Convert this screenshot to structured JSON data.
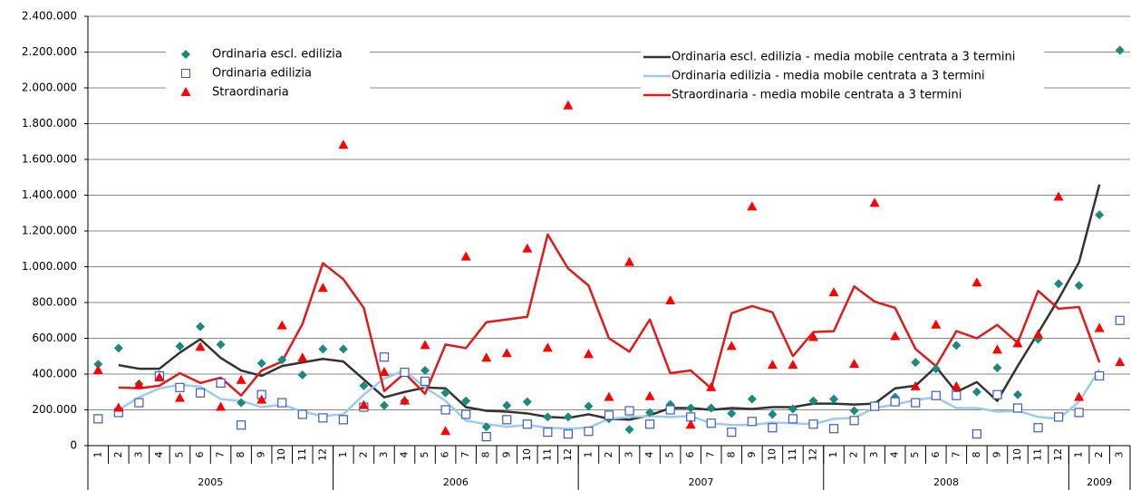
{
  "chart_data": {
    "type": "line",
    "categories": [
      {
        "month": "1",
        "year": "2005"
      },
      {
        "month": "2",
        "year": "2005"
      },
      {
        "month": "3",
        "year": "2005"
      },
      {
        "month": "4",
        "year": "2005"
      },
      {
        "month": "5",
        "year": "2005"
      },
      {
        "month": "6",
        "year": "2005"
      },
      {
        "month": "7",
        "year": "2005"
      },
      {
        "month": "8",
        "year": "2005"
      },
      {
        "month": "9",
        "year": "2005"
      },
      {
        "month": "10",
        "year": "2005"
      },
      {
        "month": "11",
        "year": "2005"
      },
      {
        "month": "12",
        "year": "2005"
      },
      {
        "month": "1",
        "year": "2006"
      },
      {
        "month": "2",
        "year": "2006"
      },
      {
        "month": "3",
        "year": "2006"
      },
      {
        "month": "4",
        "year": "2006"
      },
      {
        "month": "5",
        "year": "2006"
      },
      {
        "month": "6",
        "year": "2006"
      },
      {
        "month": "7",
        "year": "2006"
      },
      {
        "month": "8",
        "year": "2006"
      },
      {
        "month": "9",
        "year": "2006"
      },
      {
        "month": "10",
        "year": "2006"
      },
      {
        "month": "11",
        "year": "2006"
      },
      {
        "month": "12",
        "year": "2006"
      },
      {
        "month": "1",
        "year": "2007"
      },
      {
        "month": "2",
        "year": "2007"
      },
      {
        "month": "3",
        "year": "2007"
      },
      {
        "month": "4",
        "year": "2007"
      },
      {
        "month": "5",
        "year": "2007"
      },
      {
        "month": "6",
        "year": "2007"
      },
      {
        "month": "7",
        "year": "2007"
      },
      {
        "month": "8",
        "year": "2007"
      },
      {
        "month": "9",
        "year": "2007"
      },
      {
        "month": "10",
        "year": "2007"
      },
      {
        "month": "11",
        "year": "2007"
      },
      {
        "month": "12",
        "year": "2007"
      },
      {
        "month": "1",
        "year": "2008"
      },
      {
        "month": "2",
        "year": "2008"
      },
      {
        "month": "3",
        "year": "2008"
      },
      {
        "month": "4",
        "year": "2008"
      },
      {
        "month": "5",
        "year": "2008"
      },
      {
        "month": "6",
        "year": "2008"
      },
      {
        "month": "7",
        "year": "2008"
      },
      {
        "month": "8",
        "year": "2008"
      },
      {
        "month": "9",
        "year": "2008"
      },
      {
        "month": "10",
        "year": "2008"
      },
      {
        "month": "11",
        "year": "2008"
      },
      {
        "month": "12",
        "year": "2008"
      },
      {
        "month": "1",
        "year": "2009"
      },
      {
        "month": "2",
        "year": "2009"
      },
      {
        "month": "3",
        "year": "2009"
      }
    ],
    "series": [
      {
        "name": "Ordinaria escl. edilizia",
        "marker": "diamond",
        "color": "#1b8a7e",
        "values": [
          455000,
          545000,
          345000,
          395000,
          555000,
          665000,
          565000,
          240000,
          460000,
          480000,
          395000,
          540000,
          540000,
          335000,
          225000,
          250000,
          420000,
          295000,
          250000,
          105000,
          225000,
          245000,
          160000,
          160000,
          220000,
          150000,
          90000,
          185000,
          230000,
          210000,
          210000,
          180000,
          260000,
          175000,
          205000,
          250000,
          260000,
          195000,
          225000,
          270000,
          465000,
          430000,
          560000,
          300000,
          435000,
          285000,
          595000,
          905000,
          895000,
          1290000,
          2210000
        ]
      },
      {
        "name": "Ordinaria edilizia",
        "marker": "square",
        "color": "#3a5ad0",
        "values": [
          150000,
          185000,
          240000,
          390000,
          325000,
          295000,
          350000,
          115000,
          285000,
          240000,
          175000,
          155000,
          145000,
          215000,
          495000,
          410000,
          360000,
          200000,
          175000,
          50000,
          145000,
          120000,
          75000,
          65000,
          80000,
          170000,
          195000,
          120000,
          200000,
          160000,
          125000,
          75000,
          135000,
          100000,
          150000,
          120000,
          95000,
          140000,
          220000,
          245000,
          240000,
          280000,
          280000,
          65000,
          285000,
          210000,
          100000,
          160000,
          185000,
          390000,
          700000
        ]
      },
      {
        "name": "Straordinaria",
        "marker": "triangle",
        "color": "#ff0000",
        "values": [
          420000,
          210000,
          340000,
          380000,
          265000,
          550000,
          215000,
          365000,
          255000,
          670000,
          490000,
          880000,
          1680000,
          225000,
          410000,
          250000,
          560000,
          80000,
          1055000,
          490000,
          515000,
          1100000,
          545000,
          1900000,
          510000,
          270000,
          1025000,
          275000,
          810000,
          115000,
          325000,
          555000,
          1335000,
          450000,
          450000,
          605000,
          855000,
          455000,
          1355000,
          610000,
          330000,
          675000,
          330000,
          910000,
          535000,
          570000,
          620000,
          1390000,
          270000,
          655000,
          465000
        ]
      },
      {
        "name": "Ordinaria escl. edilizia - media mobile centrata a 3 termini",
        "marker": "none",
        "color": "#333333",
        "values": [
          null,
          450000,
          430000,
          430000,
          520000,
          595000,
          490000,
          420000,
          390000,
          445000,
          465000,
          485000,
          470000,
          370000,
          270000,
          300000,
          325000,
          320000,
          215000,
          195000,
          190000,
          180000,
          160000,
          155000,
          175000,
          150000,
          145000,
          170000,
          210000,
          210000,
          200000,
          210000,
          205000,
          215000,
          215000,
          235000,
          235000,
          230000,
          235000,
          320000,
          335000,
          440000,
          300000,
          355000,
          250000,
          445000,
          630000,
          820000,
          1025000,
          1460000,
          null
        ]
      },
      {
        "name": "Ordinaria edilizia - media mobile centrata a 3 termini",
        "marker": "none",
        "color": "#9dcbec",
        "values": [
          null,
          200000,
          270000,
          320000,
          340000,
          330000,
          260000,
          250000,
          215000,
          230000,
          190000,
          165000,
          175000,
          285000,
          375000,
          420000,
          325000,
          250000,
          140000,
          120000,
          105000,
          115000,
          100000,
          95000,
          100000,
          150000,
          160000,
          165000,
          160000,
          165000,
          125000,
          115000,
          115000,
          130000,
          125000,
          120000,
          150000,
          155000,
          210000,
          230000,
          255000,
          270000,
          210000,
          210000,
          190000,
          195000,
          160000,
          150000,
          245000,
          425000,
          null
        ]
      },
      {
        "name": "Straordinaria - media mobile centrata a 3 termini",
        "marker": "none",
        "color": "#e31a1a",
        "values": [
          null,
          325000,
          320000,
          335000,
          405000,
          350000,
          380000,
          280000,
          420000,
          470000,
          680000,
          1020000,
          930000,
          770000,
          305000,
          405000,
          290000,
          565000,
          545000,
          690000,
          705000,
          720000,
          1180000,
          990000,
          895000,
          600000,
          525000,
          705000,
          405000,
          420000,
          320000,
          740000,
          780000,
          745000,
          500000,
          635000,
          640000,
          890000,
          805000,
          770000,
          540000,
          445000,
          640000,
          600000,
          675000,
          575000,
          865000,
          765000,
          775000,
          465000,
          null
        ]
      }
    ],
    "ylim": [
      0,
      2400000
    ],
    "yticks": [
      0,
      {
        "value": 200000,
        "label": "200.000"
      },
      {
        "value": 400000,
        "label": "400.000"
      },
      {
        "value": 600000,
        "label": "600.000"
      },
      {
        "value": 800000,
        "label": "800.000"
      },
      {
        "value": 1000000,
        "label": "1.000.000"
      },
      {
        "value": 1200000,
        "label": "1.200.000"
      },
      {
        "value": 1400000,
        "label": "1.400.000"
      },
      {
        "value": 1600000,
        "label": "1.600.000"
      },
      {
        "value": 1800000,
        "label": "1.800.000"
      },
      {
        "value": 2000000,
        "label": "2.000.000"
      },
      {
        "value": 2200000,
        "label": "2.200.000"
      },
      {
        "value": 2400000,
        "label": "2.400.000"
      }
    ],
    "grid": true
  }
}
